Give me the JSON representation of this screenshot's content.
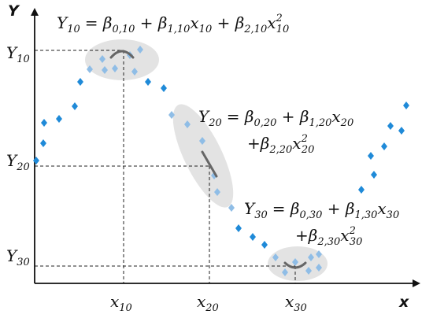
{
  "axes": {
    "x_name": "x",
    "y_name": "Y",
    "x_ticks": [
      {
        "base": "x",
        "sub": "10"
      },
      {
        "base": "x",
        "sub": "20"
      },
      {
        "base": "x",
        "sub": "30"
      }
    ],
    "y_ticks": [
      {
        "base": "Y",
        "sub": "10"
      },
      {
        "base": "Y",
        "sub": "20"
      },
      {
        "base": "Y",
        "sub": "30"
      }
    ]
  },
  "equations": {
    "eq10": {
      "lhs_base": "Y",
      "lhs_sub": "10",
      "t0": "= β",
      "t0_sub": "0,10",
      "t1": " + β",
      "t1_sub": "1,10",
      "t1_x": "x",
      "t1_x_sub": "10",
      "t2": " + β",
      "t2_sub": "2,10",
      "t2_x": "x",
      "t2_x_sup": "2",
      "t2_x_sub": "10"
    },
    "eq20": {
      "lhs_base": "Y",
      "lhs_sub": "20",
      "t0": "= β",
      "t0_sub": "0,20",
      "t1": " + β",
      "t1_sub": "1,20",
      "t1_x": "x",
      "t1_x_sub": "20",
      "t2": "+β",
      "t2_sub": "2,20",
      "t2_x": "x",
      "t2_x_sup": "2",
      "t2_x_sub": "20"
    },
    "eq30": {
      "lhs_base": "Y",
      "lhs_sub": "30",
      "t0": "= β",
      "t0_sub": "0,30",
      "t1": " + β",
      "t1_sub": "1,30",
      "t1_x": "x",
      "t1_x_sub": "30",
      "t2": "+β",
      "t2_sub": "2,30",
      "t2_x": "x",
      "t2_x_sup": "2",
      "t2_x_sub": "30"
    }
  },
  "colors": {
    "point_dark": "#1f8ad8",
    "point_light": "#8fbde6",
    "highlight": "#e3e3e3",
    "fit_curve": "#666666",
    "axis": "#111111"
  }
}
